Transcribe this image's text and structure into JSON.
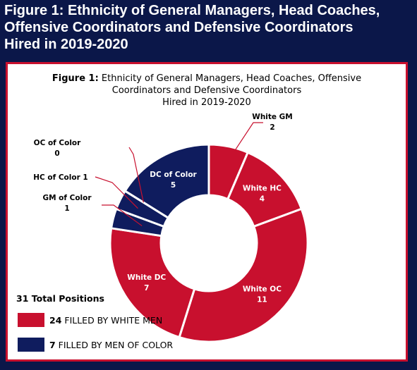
{
  "header": {
    "title_lines": [
      "Figure 1: Ethnicity of General Managers, Head Coaches,",
      "Offensive Coordinators and Defensive Coordinators",
      "Hired in 2019-2020"
    ]
  },
  "colors": {
    "background": "#0b1749",
    "white_men": "#c8102e",
    "men_of_color": "#0f1c5e",
    "panel_border": "#c8102e"
  },
  "chart_data": {
    "type": "pie",
    "title_bold": "Figure 1:",
    "title_rest": " Ethnicity of General Managers, Head Coaches, Offensive",
    "title_line2": "Coordinators and Defensive Coordinators",
    "title_line3": "Hired in 2019-2020",
    "slices": [
      {
        "label": "White GM",
        "value": 2,
        "group": "white"
      },
      {
        "label": "White HC",
        "value": 4,
        "group": "white"
      },
      {
        "label": "White OC",
        "value": 11,
        "group": "white"
      },
      {
        "label": "White DC",
        "value": 7,
        "group": "white"
      },
      {
        "label": "GM of Color",
        "value": 1,
        "group": "color"
      },
      {
        "label": "HC of Color",
        "value": 1,
        "group": "color"
      },
      {
        "label": "OC of Color",
        "value": 0,
        "group": "color"
      },
      {
        "label": "DC of Color",
        "value": 5,
        "group": "color"
      }
    ],
    "total_label": "31 Total Positions",
    "legend": [
      {
        "count": "24",
        "text": " FILLED BY WHITE MEN",
        "group": "white"
      },
      {
        "count": "7",
        "text": " FILLED BY MEN OF COLOR",
        "group": "color"
      }
    ]
  }
}
